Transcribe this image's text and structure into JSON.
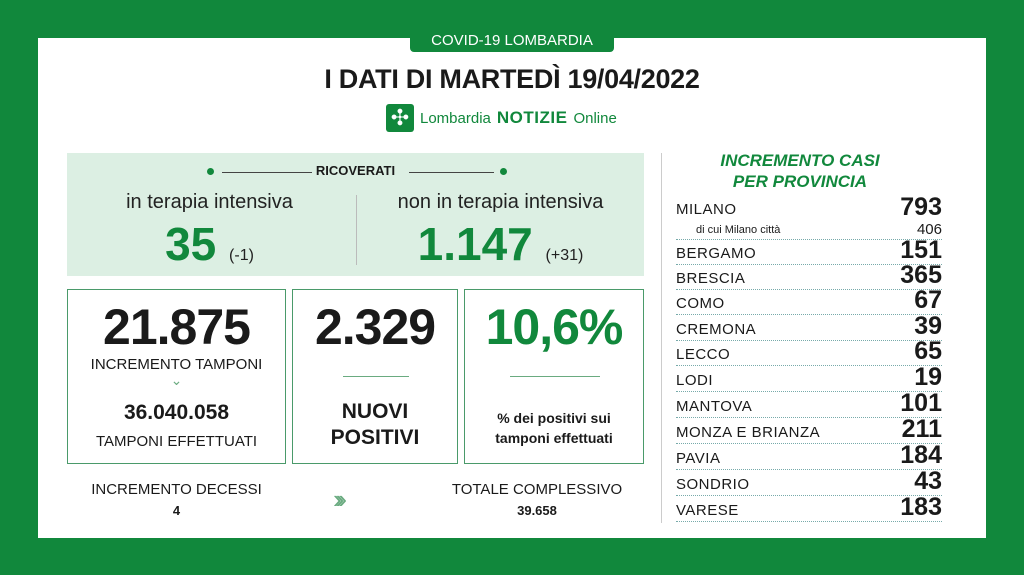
{
  "header": {
    "tag": "COVID-19 LOMBARDIA",
    "title": "I DATI DI MARTEDÌ 19/04/2022",
    "logo": {
      "icon": "lombardia-cross-icon",
      "text1": "Lombardia",
      "text2": "NOTIZIE",
      "text3": "Online"
    }
  },
  "ricoverati": {
    "label": "RICOVERATI",
    "intensiva": {
      "label": "in terapia intensiva",
      "value": "35",
      "delta": "(-1)"
    },
    "non_intensiva": {
      "label": "non in terapia intensiva",
      "value": "1.147",
      "delta": "(+31)"
    }
  },
  "tamponi": {
    "value": "21.875",
    "label": "INCREMENTO TAMPONI",
    "total": "36.040.058",
    "total_label": "TAMPONI EFFETTUATI"
  },
  "positivi": {
    "value": "2.329",
    "label1": "NUOVI",
    "label2": "POSITIVI"
  },
  "percent": {
    "value": "10,6%",
    "label1": "% dei positivi sui",
    "label2": "tamponi effettuati"
  },
  "decessi": {
    "label": "INCREMENTO DECESSI",
    "value": "4",
    "total_label": "TOTALE COMPLESSIVO",
    "total": "39.658"
  },
  "province": {
    "title1": "INCREMENTO CASI",
    "title2": "PER PROVINCIA",
    "sub_label": "di cui Milano città",
    "sub_value": "406",
    "rows": [
      {
        "name": "MILANO",
        "value": "793"
      },
      {
        "name": "BERGAMO",
        "value": "151"
      },
      {
        "name": "BRESCIA",
        "value": "365"
      },
      {
        "name": "COMO",
        "value": "67"
      },
      {
        "name": "CREMONA",
        "value": "39"
      },
      {
        "name": "LECCO",
        "value": "65"
      },
      {
        "name": "LODI",
        "value": "19"
      },
      {
        "name": "MANTOVA",
        "value": "101"
      },
      {
        "name": "MONZA E BRIANZA",
        "value": "211"
      },
      {
        "name": "PAVIA",
        "value": "184"
      },
      {
        "name": "SONDRIO",
        "value": "43"
      },
      {
        "name": "VARESE",
        "value": "183"
      }
    ]
  },
  "colors": {
    "brand_green": "#11883c",
    "panel_green": "#dcefe3"
  }
}
